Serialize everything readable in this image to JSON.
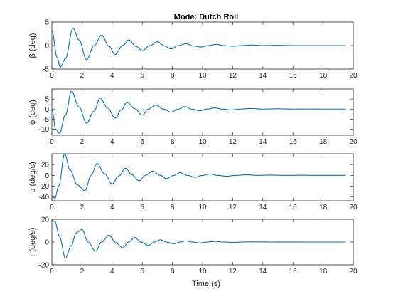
{
  "figure": {
    "title": "Mode: Dutch Roll",
    "xlabel": "Time (s)"
  },
  "colors": {
    "line": "#0072BD",
    "axes": "#262626",
    "background": "#ffffff"
  },
  "chart_data": [
    {
      "type": "line",
      "title": "Mode: Dutch Roll",
      "ylabel": "β (deg)",
      "xlim": [
        0,
        20
      ],
      "ylim": [
        -5,
        5
      ],
      "xticks": [
        0,
        2,
        4,
        6,
        8,
        10,
        12,
        14,
        16,
        18,
        20
      ],
      "yticks": [
        -5,
        0,
        5
      ],
      "x_end": 19.5,
      "x": [
        0,
        0.35,
        0.55,
        0.9,
        1.4,
        1.8,
        2.3,
        2.8,
        3.3,
        3.8,
        4.2,
        4.7,
        5.1,
        5.6,
        6.0,
        6.5,
        7.0,
        7.5,
        7.9,
        8.4,
        8.9,
        9.4,
        9.9,
        10.4,
        10.9,
        11.4,
        12.0,
        12.6,
        13.3,
        14.0,
        15.0,
        16.0,
        17.0,
        18.0,
        19.5
      ],
      "y": [
        3.2,
        -2.5,
        -4.6,
        -2.8,
        3.7,
        1.2,
        -3.0,
        0.0,
        2.2,
        -0.2,
        -1.9,
        0.0,
        1.2,
        -0.2,
        -1.1,
        0.0,
        0.8,
        -0.1,
        -0.7,
        0.0,
        0.4,
        -0.1,
        -0.3,
        0.0,
        0.25,
        0.0,
        -0.15,
        0.0,
        0.1,
        0.0,
        0.05,
        0.0,
        0.0,
        0.0,
        0.0
      ],
      "series": [
        {
          "values_ref": "y"
        }
      ]
    },
    {
      "type": "line",
      "ylabel": "ϕ (deg)",
      "xlim": [
        0,
        20
      ],
      "ylim": [
        -13,
        10
      ],
      "xticks": [
        0,
        2,
        4,
        6,
        8,
        10,
        12,
        14,
        16,
        18,
        20
      ],
      "yticks": [
        -10,
        -5,
        0,
        5
      ],
      "x_end": 19.5,
      "x": [
        0,
        0.25,
        0.5,
        0.9,
        1.3,
        1.8,
        2.3,
        2.8,
        3.2,
        3.7,
        4.2,
        4.6,
        5.0,
        5.5,
        6.0,
        6.4,
        6.9,
        7.4,
        7.9,
        8.4,
        8.8,
        9.3,
        9.8,
        10.3,
        10.8,
        11.3,
        11.9,
        12.5,
        13.2,
        14.0,
        15.0,
        16.0,
        17.0,
        18.0,
        19.5
      ],
      "y": [
        0,
        -10.0,
        -12.0,
        -3.0,
        9.0,
        1.0,
        -7.0,
        -1.0,
        5.5,
        0.5,
        -4.5,
        -0.5,
        3.5,
        0.2,
        -3.0,
        0.0,
        2.0,
        0.0,
        -1.5,
        0.0,
        1.2,
        0.0,
        -0.8,
        0.0,
        0.6,
        0.0,
        -0.4,
        0.0,
        0.3,
        0.0,
        0.15,
        0.0,
        0.05,
        0.0,
        0.0
      ],
      "series": [
        {
          "values_ref": "y"
        }
      ]
    },
    {
      "type": "line",
      "ylabel": "p (deg/s)",
      "xlim": [
        0,
        20
      ],
      "ylim": [
        -47,
        40
      ],
      "xticks": [
        0,
        2,
        4,
        6,
        8,
        10,
        12,
        14,
        16,
        18,
        20
      ],
      "yticks": [
        -40,
        -20,
        0,
        20
      ],
      "x_end": 19.5,
      "x": [
        0,
        0.2,
        0.45,
        0.85,
        1.2,
        1.7,
        2.2,
        2.6,
        3.0,
        3.5,
        4.0,
        4.4,
        4.9,
        5.3,
        5.8,
        6.2,
        6.7,
        7.2,
        7.6,
        8.1,
        8.5,
        9.0,
        9.5,
        10.0,
        10.5,
        11.0,
        11.6,
        12.2,
        12.9,
        13.7,
        14.5,
        15.5,
        16.5,
        17.5,
        19.5
      ],
      "y": [
        -40,
        -42,
        -20,
        40,
        10,
        -18,
        -28,
        0,
        22,
        3,
        -16,
        -2,
        13,
        1,
        -10,
        0,
        8,
        0,
        -6,
        0,
        5,
        0,
        -3.5,
        0,
        2.5,
        0,
        -1.5,
        0,
        1.0,
        0,
        0.5,
        0,
        0.2,
        0,
        0
      ],
      "series": [
        {
          "values_ref": "y"
        }
      ]
    },
    {
      "type": "line",
      "ylabel": "r (deg/s)",
      "xlabel": "Time (s)",
      "xlim": [
        0,
        20
      ],
      "ylim": [
        -20,
        20
      ],
      "xticks": [
        0,
        2,
        4,
        6,
        8,
        10,
        12,
        14,
        16,
        18,
        20
      ],
      "yticks": [
        -20,
        0,
        20
      ],
      "x_end": 19.5,
      "x": [
        0,
        0.2,
        0.5,
        0.9,
        1.3,
        1.6,
        2.0,
        2.4,
        2.9,
        3.3,
        3.8,
        4.2,
        4.7,
        5.1,
        5.5,
        5.9,
        6.4,
        6.8,
        7.2,
        7.6,
        8.1,
        8.5,
        8.9,
        9.3,
        9.8,
        10.3,
        10.8,
        11.4,
        12.0,
        12.7,
        13.5,
        14.5,
        15.5,
        17.0,
        19.5
      ],
      "y": [
        19,
        18,
        5,
        -14,
        -3,
        8,
        11,
        0,
        -8,
        0,
        6,
        0,
        -5,
        0,
        4,
        0,
        -3,
        0,
        2,
        0,
        -1.5,
        0,
        1,
        0,
        -0.8,
        0,
        0.5,
        0,
        -0.3,
        0,
        0.15,
        0,
        0.05,
        0,
        0
      ],
      "series": [
        {
          "values_ref": "y"
        }
      ]
    }
  ]
}
